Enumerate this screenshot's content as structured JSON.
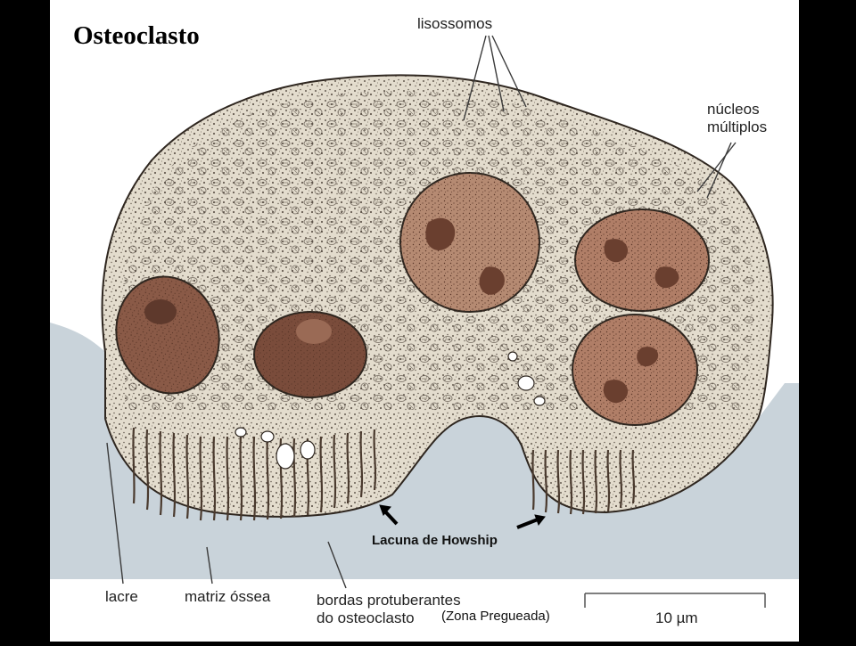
{
  "slide": {
    "title": "Osteoclasto"
  },
  "labels": {
    "lysosomes": "lisossomos",
    "nuclei_line1": "núcleos",
    "nuclei_line2": "múltiplos",
    "howship_lacuna": "Lacuna de Howship",
    "sealing_zone": "lacre",
    "bone_matrix": "matriz óssea",
    "ruffled_border_line1": "bordas protuberantes",
    "ruffled_border_line2": "do osteoclasto",
    "ruffled_border_alt": "(Zona Pregueada)",
    "scale_bar": "10 µm"
  },
  "colors": {
    "background_frame": "#000000",
    "canvas": "#ffffff",
    "bone_matrix": "#c9d3da",
    "cytoplasm": "#e3dccd",
    "nucleus_fill": "#b07e67",
    "nucleus_dark": "#6e4435",
    "stipple": "#3c3128"
  }
}
